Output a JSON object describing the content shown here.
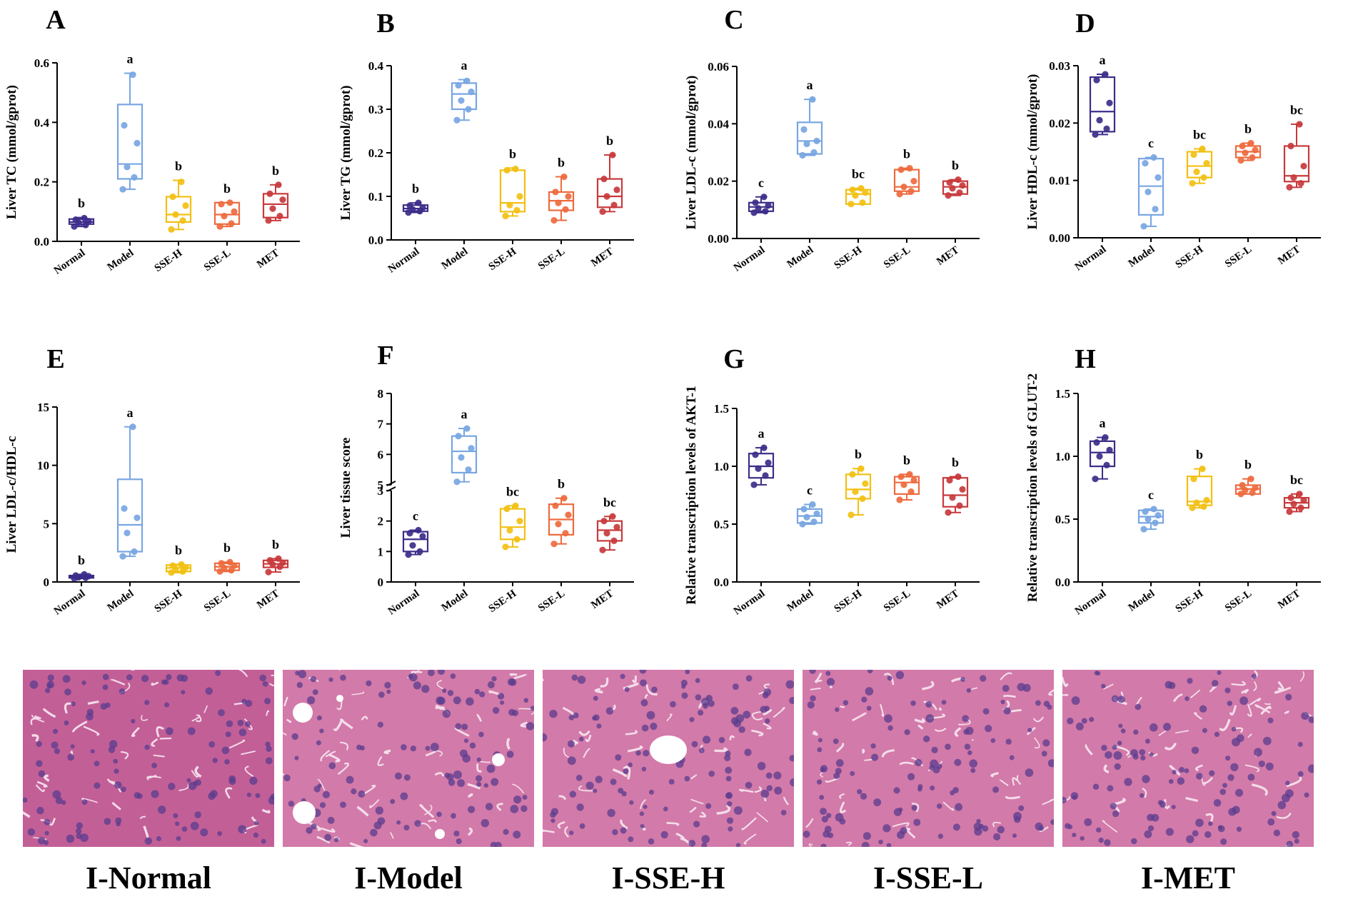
{
  "groups": [
    "Normal",
    "Model",
    "SSE-H",
    "SSE-L",
    "MET"
  ],
  "colors": {
    "Normal": "#3d2d8a",
    "Model": "#78a6e2",
    "SSE-H": "#f2c012",
    "SSE-L": "#ee6a3e",
    "MET": "#c83a3c"
  },
  "chart_data": [
    {
      "type": "box",
      "panel": "A",
      "ylabel": "Liver TC (mmol/gprot)",
      "ylim": [
        0,
        0.6
      ],
      "yticks": [
        "0.0",
        "0.2",
        "0.4",
        "0.6"
      ],
      "categories": [
        "Normal",
        "Model",
        "SSE-H",
        "SSE-L",
        "MET"
      ],
      "series": [
        {
          "name": "Normal",
          "min": 0.05,
          "q1": 0.058,
          "median": 0.065,
          "q3": 0.075,
          "max": 0.08,
          "points": [
            0.05,
            0.055,
            0.063,
            0.068,
            0.073,
            0.078
          ],
          "letter": "b"
        },
        {
          "name": "Model",
          "min": 0.175,
          "q1": 0.21,
          "median": 0.26,
          "q3": 0.46,
          "max": 0.565,
          "points": [
            0.175,
            0.215,
            0.25,
            0.33,
            0.39,
            0.56
          ],
          "letter": "a"
        },
        {
          "name": "SSE-H",
          "min": 0.04,
          "q1": 0.065,
          "median": 0.09,
          "q3": 0.15,
          "max": 0.205,
          "points": [
            0.04,
            0.07,
            0.09,
            0.12,
            0.15,
            0.2
          ],
          "letter": "b"
        },
        {
          "name": "SSE-L",
          "min": 0.05,
          "q1": 0.058,
          "median": 0.09,
          "q3": 0.13,
          "max": 0.13,
          "points": [
            0.05,
            0.06,
            0.085,
            0.1,
            0.125,
            0.13
          ],
          "letter": "b"
        },
        {
          "name": "MET",
          "min": 0.07,
          "q1": 0.08,
          "median": 0.125,
          "q3": 0.16,
          "max": 0.19,
          "points": [
            0.07,
            0.085,
            0.11,
            0.14,
            0.16,
            0.19
          ],
          "letter": "b"
        }
      ]
    },
    {
      "type": "box",
      "panel": "B",
      "ylabel": "Liver TG (mmol/gprot)",
      "ylim": [
        0,
        0.4
      ],
      "yticks": [
        "0.0",
        "0.1",
        "0.2",
        "0.3",
        "0.4"
      ],
      "categories": [
        "Normal",
        "Model",
        "SSE-H",
        "SSE-L",
        "MET"
      ],
      "series": [
        {
          "name": "Normal",
          "min": 0.063,
          "q1": 0.066,
          "median": 0.072,
          "q3": 0.08,
          "max": 0.085,
          "points": [
            0.063,
            0.066,
            0.07,
            0.074,
            0.079,
            0.085
          ],
          "letter": "b"
        },
        {
          "name": "Model",
          "min": 0.275,
          "q1": 0.3,
          "median": 0.335,
          "q3": 0.36,
          "max": 0.368,
          "points": [
            0.275,
            0.3,
            0.32,
            0.34,
            0.355,
            0.365
          ],
          "letter": "a"
        },
        {
          "name": "SSE-H",
          "min": 0.055,
          "q1": 0.065,
          "median": 0.085,
          "q3": 0.16,
          "max": 0.165,
          "points": [
            0.055,
            0.068,
            0.08,
            0.1,
            0.16,
            0.163
          ],
          "letter": "b"
        },
        {
          "name": "SSE-L",
          "min": 0.045,
          "q1": 0.068,
          "median": 0.09,
          "q3": 0.11,
          "max": 0.145,
          "points": [
            0.045,
            0.07,
            0.085,
            0.1,
            0.11,
            0.145
          ],
          "letter": "b"
        },
        {
          "name": "MET",
          "min": 0.065,
          "q1": 0.075,
          "median": 0.1,
          "q3": 0.14,
          "max": 0.195,
          "points": [
            0.065,
            0.08,
            0.1,
            0.115,
            0.14,
            0.195
          ],
          "letter": "b"
        }
      ]
    },
    {
      "type": "box",
      "panel": "C",
      "ylabel": "Liver LDL-c (mmol/gprot)",
      "ylim": [
        0,
        0.06
      ],
      "yticks": [
        "0.00",
        "0.02",
        "0.04",
        "0.06"
      ],
      "categories": [
        "Normal",
        "Model",
        "SSE-H",
        "SSE-L",
        "MET"
      ],
      "series": [
        {
          "name": "Normal",
          "min": 0.009,
          "q1": 0.0095,
          "median": 0.011,
          "q3": 0.0125,
          "max": 0.0145,
          "points": [
            0.009,
            0.0095,
            0.0105,
            0.0115,
            0.0125,
            0.0145
          ],
          "letter": "c"
        },
        {
          "name": "Model",
          "min": 0.029,
          "q1": 0.0295,
          "median": 0.034,
          "q3": 0.0405,
          "max": 0.0485,
          "points": [
            0.029,
            0.03,
            0.033,
            0.034,
            0.038,
            0.0485
          ],
          "letter": "a"
        },
        {
          "name": "SSE-H",
          "min": 0.012,
          "q1": 0.012,
          "median": 0.0155,
          "q3": 0.017,
          "max": 0.0175,
          "points": [
            0.012,
            0.0125,
            0.015,
            0.016,
            0.017,
            0.0175
          ],
          "letter": "bc"
        },
        {
          "name": "SSE-L",
          "min": 0.0155,
          "q1": 0.0165,
          "median": 0.018,
          "q3": 0.024,
          "max": 0.0245,
          "points": [
            0.0155,
            0.0165,
            0.018,
            0.02,
            0.024,
            0.0245
          ],
          "letter": "b"
        },
        {
          "name": "MET",
          "min": 0.015,
          "q1": 0.0155,
          "median": 0.018,
          "q3": 0.02,
          "max": 0.0205,
          "points": [
            0.015,
            0.016,
            0.0175,
            0.0185,
            0.0195,
            0.0205
          ],
          "letter": "b"
        }
      ]
    },
    {
      "type": "box",
      "panel": "D",
      "ylabel": "Liver HDL-c (mmol/gprot)",
      "ylim": [
        0,
        0.03
      ],
      "yticks": [
        "0.00",
        "0.01",
        "0.02",
        "0.03"
      ],
      "categories": [
        "Normal",
        "Model",
        "SSE-H",
        "SSE-L",
        "MET"
      ],
      "series": [
        {
          "name": "Normal",
          "min": 0.018,
          "q1": 0.0185,
          "median": 0.022,
          "q3": 0.028,
          "max": 0.0285,
          "points": [
            0.018,
            0.019,
            0.0205,
            0.0235,
            0.0275,
            0.0285
          ],
          "letter": "a"
        },
        {
          "name": "Model",
          "min": 0.002,
          "q1": 0.004,
          "median": 0.009,
          "q3": 0.0138,
          "max": 0.014,
          "points": [
            0.002,
            0.005,
            0.008,
            0.0105,
            0.013,
            0.014
          ],
          "letter": "c"
        },
        {
          "name": "SSE-H",
          "min": 0.0095,
          "q1": 0.0105,
          "median": 0.0125,
          "q3": 0.015,
          "max": 0.0155,
          "points": [
            0.0095,
            0.0105,
            0.0115,
            0.013,
            0.0145,
            0.0155
          ],
          "letter": "bc"
        },
        {
          "name": "SSE-L",
          "min": 0.0135,
          "q1": 0.014,
          "median": 0.015,
          "q3": 0.016,
          "max": 0.0165,
          "points": [
            0.0135,
            0.014,
            0.0148,
            0.0153,
            0.016,
            0.0165
          ],
          "letter": "b"
        },
        {
          "name": "MET",
          "min": 0.0088,
          "q1": 0.0098,
          "median": 0.0108,
          "q3": 0.016,
          "max": 0.0198,
          "points": [
            0.0088,
            0.0095,
            0.0105,
            0.0125,
            0.016,
            0.0198
          ],
          "letter": "bc"
        }
      ]
    },
    {
      "type": "box",
      "panel": "E",
      "ylabel": "Liver LDL-c/HDL-c",
      "ylim": [
        0,
        15
      ],
      "yticks": [
        "0",
        "5",
        "10",
        "15"
      ],
      "categories": [
        "Normal",
        "Model",
        "SSE-H",
        "SSE-L",
        "MET"
      ],
      "series": [
        {
          "name": "Normal",
          "min": 0.3,
          "q1": 0.35,
          "median": 0.45,
          "q3": 0.55,
          "max": 0.65,
          "points": [
            0.3,
            0.35,
            0.4,
            0.5,
            0.55,
            0.65
          ],
          "letter": "b"
        },
        {
          "name": "Model",
          "min": 2.2,
          "q1": 2.6,
          "median": 4.9,
          "q3": 8.8,
          "max": 13.3,
          "points": [
            2.2,
            2.6,
            4.2,
            5.5,
            6.3,
            13.3
          ],
          "letter": "a"
        },
        {
          "name": "SSE-H",
          "min": 0.8,
          "q1": 0.9,
          "median": 1.2,
          "q3": 1.45,
          "max": 1.5,
          "points": [
            0.8,
            0.9,
            1.1,
            1.25,
            1.4,
            1.5
          ],
          "letter": "b"
        },
        {
          "name": "SSE-L",
          "min": 0.9,
          "q1": 1.0,
          "median": 1.3,
          "q3": 1.6,
          "max": 1.7,
          "points": [
            0.9,
            1.0,
            1.2,
            1.4,
            1.6,
            1.7
          ],
          "letter": "b"
        },
        {
          "name": "MET",
          "min": 0.85,
          "q1": 1.25,
          "median": 1.55,
          "q3": 1.85,
          "max": 2.0,
          "points": [
            0.85,
            1.3,
            1.5,
            1.65,
            1.85,
            2.0
          ],
          "letter": "b"
        }
      ]
    },
    {
      "type": "box",
      "panel": "F",
      "ylabel": "Liver tissue score",
      "ylim": [
        0,
        8
      ],
      "axis_break": [
        3,
        5
      ],
      "yticks": [
        "0",
        "1",
        "2",
        "3",
        "5",
        "6",
        "7",
        "8"
      ],
      "categories": [
        "Normal",
        "Model",
        "SSE-H",
        "SSE-L",
        "MET"
      ],
      "series": [
        {
          "name": "Normal",
          "min": 0.9,
          "q1": 1.0,
          "median": 1.4,
          "q3": 1.65,
          "max": 1.7,
          "points": [
            0.9,
            1.0,
            1.2,
            1.5,
            1.6,
            1.7
          ],
          "letter": "c"
        },
        {
          "name": "Model",
          "min": 5.1,
          "q1": 5.4,
          "median": 6.1,
          "q3": 6.6,
          "max": 6.85,
          "points": [
            5.1,
            5.5,
            5.9,
            6.2,
            6.6,
            6.85
          ],
          "letter": "a"
        },
        {
          "name": "SSE-H",
          "min": 1.15,
          "q1": 1.4,
          "median": 1.8,
          "q3": 2.4,
          "max": 2.5,
          "points": [
            1.15,
            1.4,
            1.7,
            2.0,
            2.4,
            2.5
          ],
          "letter": "bc"
        },
        {
          "name": "SSE-L",
          "min": 1.25,
          "q1": 1.55,
          "median": 2.05,
          "q3": 2.55,
          "max": 2.75,
          "points": [
            1.25,
            1.6,
            1.9,
            2.2,
            2.5,
            2.75
          ],
          "letter": "b"
        },
        {
          "name": "MET",
          "min": 1.05,
          "q1": 1.35,
          "median": 1.7,
          "q3": 2.0,
          "max": 2.15,
          "points": [
            1.05,
            1.35,
            1.6,
            1.8,
            2.0,
            2.15
          ],
          "letter": "bc"
        }
      ]
    },
    {
      "type": "box",
      "panel": "G",
      "ylabel": "Relative transcription levels of AKT-1",
      "ylim": [
        0,
        1.5
      ],
      "yticks": [
        "0.0",
        "0.5",
        "1.0",
        "1.5"
      ],
      "categories": [
        "Normal",
        "Model",
        "SSE-H",
        "SSE-L",
        "MET"
      ],
      "series": [
        {
          "name": "Normal",
          "min": 0.84,
          "q1": 0.9,
          "median": 1.0,
          "q3": 1.11,
          "max": 1.16,
          "points": [
            0.84,
            0.92,
            0.98,
            1.03,
            1.1,
            1.16
          ],
          "letter": "a"
        },
        {
          "name": "Model",
          "min": 0.5,
          "q1": 0.51,
          "median": 0.57,
          "q3": 0.63,
          "max": 0.67,
          "points": [
            0.5,
            0.52,
            0.56,
            0.59,
            0.63,
            0.67
          ],
          "letter": "c"
        },
        {
          "name": "SSE-H",
          "min": 0.58,
          "q1": 0.72,
          "median": 0.8,
          "q3": 0.93,
          "max": 0.98,
          "points": [
            0.58,
            0.72,
            0.78,
            0.85,
            0.93,
            0.98
          ],
          "letter": "b"
        },
        {
          "name": "SSE-L",
          "min": 0.71,
          "q1": 0.76,
          "median": 0.86,
          "q3": 0.91,
          "max": 0.93,
          "points": [
            0.71,
            0.78,
            0.84,
            0.88,
            0.91,
            0.93
          ],
          "letter": "b"
        },
        {
          "name": "MET",
          "min": 0.6,
          "q1": 0.65,
          "median": 0.75,
          "q3": 0.9,
          "max": 0.91,
          "points": [
            0.6,
            0.66,
            0.73,
            0.8,
            0.88,
            0.91
          ],
          "letter": "b"
        }
      ]
    },
    {
      "type": "box",
      "panel": "H",
      "ylabel": "Relative transcription levels of GLUT-2",
      "ylim": [
        0,
        1.5
      ],
      "yticks": [
        "0.0",
        "0.5",
        "1.0",
        "1.5"
      ],
      "categories": [
        "Normal",
        "Model",
        "SSE-H",
        "SSE-L",
        "MET"
      ],
      "series": [
        {
          "name": "Normal",
          "min": 0.82,
          "q1": 0.92,
          "median": 1.03,
          "q3": 1.12,
          "max": 1.15,
          "points": [
            0.82,
            0.93,
            1.0,
            1.05,
            1.11,
            1.15
          ],
          "letter": "a"
        },
        {
          "name": "Model",
          "min": 0.42,
          "q1": 0.47,
          "median": 0.52,
          "q3": 0.57,
          "max": 0.58,
          "points": [
            0.42,
            0.47,
            0.5,
            0.53,
            0.56,
            0.58
          ],
          "letter": "c"
        },
        {
          "name": "SSE-H",
          "min": 0.59,
          "q1": 0.61,
          "median": 0.64,
          "q3": 0.84,
          "max": 0.9,
          "points": [
            0.59,
            0.6,
            0.63,
            0.65,
            0.82,
            0.9
          ],
          "letter": "b"
        },
        {
          "name": "SSE-L",
          "min": 0.7,
          "q1": 0.7,
          "median": 0.74,
          "q3": 0.77,
          "max": 0.82,
          "points": [
            0.7,
            0.71,
            0.73,
            0.75,
            0.77,
            0.82
          ],
          "letter": "b"
        },
        {
          "name": "MET",
          "min": 0.56,
          "q1": 0.59,
          "median": 0.63,
          "q3": 0.67,
          "max": 0.7,
          "points": [
            0.56,
            0.59,
            0.62,
            0.65,
            0.67,
            0.7
          ],
          "letter": "bc"
        }
      ]
    }
  ],
  "micrographs": [
    {
      "label": "I-Normal"
    },
    {
      "label": "I-Model"
    },
    {
      "label": "I-SSE-H"
    },
    {
      "label": "I-SSE-L"
    },
    {
      "label": "I-MET"
    }
  ]
}
